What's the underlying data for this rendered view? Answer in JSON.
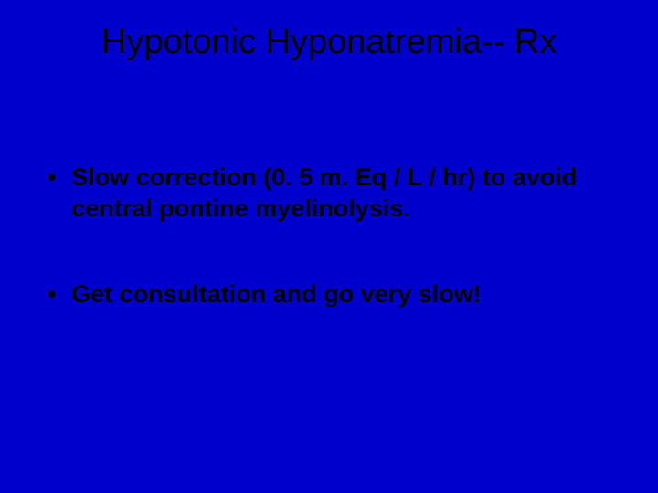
{
  "slide": {
    "title": "Hypotonic Hyponatremia-- Rx",
    "background_color": "#0000cc",
    "title_color": "#000000",
    "title_fontsize": 38,
    "bullet_color": "#000000",
    "bullet_fontsize": 27,
    "bullets": [
      "Slow correction (0. 5 m. Eq / L / hr) to avoid central pontine myelinolysis.",
      "Get consultation and go very slow!"
    ]
  }
}
